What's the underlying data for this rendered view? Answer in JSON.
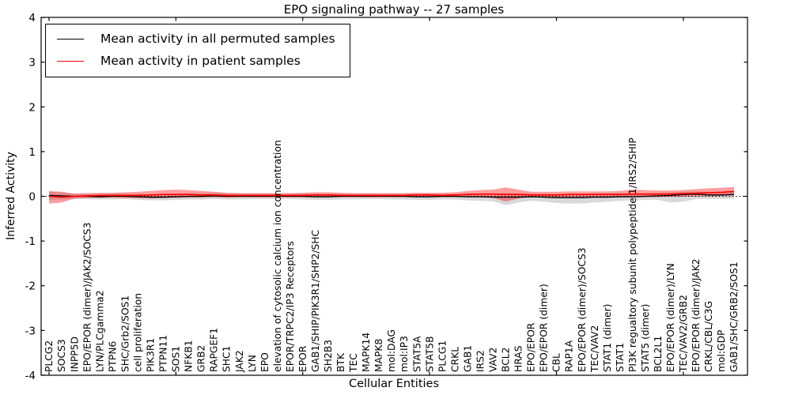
{
  "title": "EPO signaling pathway -- 27 samples",
  "legend": {
    "items": [
      {
        "label": "Mean activity in all permuted samples",
        "color": "#000000"
      },
      {
        "label": "Mean activity in patient samples",
        "color": "#ff0000"
      }
    ]
  },
  "chart_data": {
    "type": "line",
    "title": "EPO signaling pathway -- 27 samples",
    "xlabel": "Cellular Entities",
    "ylabel": "Inferred Activity",
    "ylim": [
      -4,
      4
    ],
    "yticks": [
      4,
      3,
      2,
      1,
      0,
      -1,
      -2,
      -3,
      -4
    ],
    "xtick_indices": [
      0,
      10,
      20,
      30,
      40,
      50
    ],
    "grid": false,
    "zero_line": "dotted",
    "legend_position": "upper left",
    "categories": [
      "PLCG2",
      "SOCS3",
      "INPP5D",
      "EPO/EPOR (dimer)/JAK2/SOCS3",
      "LYN/PLCgamma2",
      "PTPN6",
      "SHC/Grb2/SOS1",
      "cell proliferation",
      "PIK3R1",
      "PTPN11",
      "SOS1",
      "NFKB1",
      "GRB2",
      "RAPGEF1",
      "SHC1",
      "JAK2",
      "LYN",
      "EPO",
      "elevation of cytosolic calcium ion concentration",
      "EPOR/TRPC2/IP3 Receptors",
      "EPOR",
      "GAB1/SHIP/PIK3R1/SHP2/SHC",
      "SH2B3",
      "BTK",
      "TEC",
      "MAPK14",
      "MAPK8",
      "mol:DAG",
      "mol:IP3",
      "STAT5A",
      "STAT5B",
      "PLCG1",
      "CRKL",
      "GAB1",
      "IRS2",
      "VAV2",
      "BCL2",
      "HRAS",
      "EPO/EPOR",
      "EPO/EPOR (dimer)",
      "CBL",
      "RAP1A",
      "EPO/EPOR (dimer)/SOCS3",
      "TEC/VAV2",
      "STAT1 (dimer)",
      "STAT1",
      "PI3K regualtory subunit polypeptide 1/IRS2/SHIP",
      "STAT5 (dimer)",
      "BCL2L1",
      "EPO/EPOR (dimer)/LYN",
      "TEC/VAV2/GRB2",
      "EPO/EPOR (dimer)/JAK2",
      "CRKL/CBL/C3G",
      "mol:GDP",
      "GAB1/SHC/GRB2/SOS1"
    ],
    "series": [
      {
        "name": "Mean activity in all permuted samples",
        "color": "#000000",
        "values": [
          0.02,
          0.01,
          0,
          0,
          -0.01,
          0,
          0,
          -0.01,
          -0.02,
          -0.02,
          -0.01,
          0,
          0,
          0.01,
          0,
          0,
          0,
          0,
          0,
          0,
          0,
          -0.01,
          -0.01,
          0,
          0,
          0,
          0,
          0,
          0,
          -0.01,
          -0.01,
          0,
          0,
          -0.01,
          -0.01,
          -0.02,
          -0.02,
          -0.02,
          -0.01,
          -0.02,
          -0.03,
          -0.03,
          -0.03,
          -0.02,
          -0.02,
          -0.01,
          -0.01,
          0,
          0.01,
          0.02,
          0.04,
          0.05,
          0.03,
          0.03,
          0.04
        ]
      },
      {
        "name": "Mean activity in patient samples",
        "color": "#ff0000",
        "values": [
          0,
          -0.02,
          0,
          0.01,
          0.02,
          0.02,
          0.02,
          0.02,
          0.03,
          0.04,
          0.04,
          0.04,
          0.03,
          0.03,
          0.02,
          0.02,
          0.02,
          0.02,
          0.02,
          0.02,
          0.02,
          0.03,
          0.03,
          0.02,
          0.02,
          0.02,
          0.02,
          0.02,
          0.02,
          0.03,
          0.03,
          0.02,
          0.03,
          0.04,
          0.05,
          0.05,
          0.04,
          0.04,
          0.03,
          0.03,
          0.03,
          0.04,
          0.04,
          0.04,
          0.04,
          0.04,
          0.05,
          0.05,
          0.05,
          0.05,
          0.06,
          0.07,
          0.08,
          0.09,
          0.11
        ]
      }
    ],
    "bands": [
      {
        "name": "permuted-samples-range",
        "color": "#000000",
        "opacity": 0.15,
        "upper": [
          0.1,
          0.09,
          0.06,
          0.06,
          0.05,
          0.06,
          0.06,
          0.06,
          0.05,
          0.05,
          0.06,
          0.07,
          0.07,
          0.08,
          0.07,
          0.07,
          0.06,
          0.06,
          0.06,
          0.06,
          0.06,
          0.06,
          0.06,
          0.06,
          0.06,
          0.06,
          0.06,
          0.06,
          0.06,
          0.06,
          0.06,
          0.06,
          0.06,
          0.06,
          0.06,
          0.06,
          0.07,
          0.07,
          0.07,
          0.06,
          0.06,
          0.06,
          0.06,
          0.06,
          0.07,
          0.07,
          0.07,
          0.07,
          0.08,
          0.09,
          0.1,
          0.11,
          0.1,
          0.1,
          0.11
        ],
        "lower": [
          -0.08,
          -0.07,
          -0.06,
          -0.06,
          -0.07,
          -0.07,
          -0.06,
          -0.08,
          -0.09,
          -0.09,
          -0.08,
          -0.07,
          -0.07,
          -0.06,
          -0.07,
          -0.07,
          -0.06,
          -0.06,
          -0.06,
          -0.06,
          -0.07,
          -0.08,
          -0.08,
          -0.07,
          -0.07,
          -0.06,
          -0.06,
          -0.07,
          -0.07,
          -0.08,
          -0.08,
          -0.07,
          -0.07,
          -0.09,
          -0.1,
          -0.11,
          -0.2,
          -0.14,
          -0.1,
          -0.12,
          -0.15,
          -0.16,
          -0.16,
          -0.14,
          -0.12,
          -0.1,
          -0.09,
          -0.08,
          -0.08,
          -0.14,
          -0.12,
          -0.06,
          -0.06,
          -0.06,
          -0.05
        ]
      },
      {
        "name": "patient-samples-range",
        "color": "#ff0000",
        "opacity": 0.38,
        "upper": [
          0.12,
          0.1,
          0.06,
          0.07,
          0.08,
          0.08,
          0.09,
          0.1,
          0.12,
          0.14,
          0.15,
          0.14,
          0.12,
          0.1,
          0.08,
          0.07,
          0.07,
          0.07,
          0.07,
          0.07,
          0.08,
          0.09,
          0.09,
          0.08,
          0.07,
          0.07,
          0.07,
          0.07,
          0.07,
          0.08,
          0.08,
          0.08,
          0.09,
          0.12,
          0.14,
          0.15,
          0.2,
          0.15,
          0.1,
          0.1,
          0.1,
          0.11,
          0.11,
          0.11,
          0.11,
          0.12,
          0.15,
          0.14,
          0.13,
          0.13,
          0.14,
          0.16,
          0.18,
          0.19,
          0.21
        ],
        "lower": [
          -0.16,
          -0.14,
          -0.05,
          -0.04,
          -0.03,
          -0.03,
          -0.04,
          -0.04,
          -0.05,
          -0.04,
          -0.03,
          -0.03,
          -0.03,
          -0.02,
          -0.03,
          -0.02,
          -0.02,
          -0.02,
          -0.02,
          -0.02,
          -0.02,
          -0.02,
          -0.02,
          -0.02,
          -0.02,
          -0.02,
          -0.02,
          -0.02,
          -0.02,
          -0.02,
          -0.02,
          -0.02,
          -0.02,
          -0.02,
          -0.02,
          -0.03,
          -0.12,
          -0.05,
          -0.02,
          -0.02,
          -0.02,
          -0.02,
          -0.02,
          -0.02,
          -0.02,
          -0.02,
          -0.02,
          -0.02,
          -0.02,
          -0.01,
          -0.01,
          0,
          0,
          0.01,
          0.02
        ]
      }
    ]
  }
}
